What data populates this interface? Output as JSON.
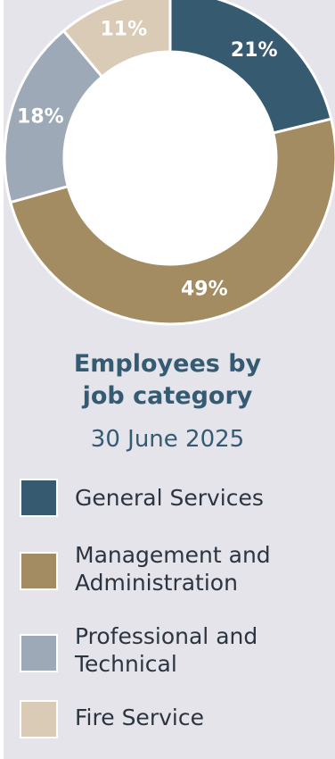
{
  "chart_data": {
    "type": "pie",
    "variant": "donut",
    "title_line1": "Employees by",
    "title_line2": "job category",
    "subtitle": "30 June 2025",
    "slices": [
      {
        "name": "General Services",
        "value": 21,
        "label": "21%",
        "color": "#365b70"
      },
      {
        "name": "Management and Administration",
        "value": 49,
        "label": "49%",
        "color": "#a48c62"
      },
      {
        "name": "Professional and Technical",
        "value": 18,
        "label": "18%",
        "color": "#9ea9b7"
      },
      {
        "name": "Fire Service",
        "value": 11,
        "label": "11%",
        "color": "#d9cbb6"
      }
    ]
  },
  "legend": {
    "items": [
      {
        "line1": "General Services",
        "line2": "",
        "color": "#365b70"
      },
      {
        "line1": "Management and",
        "line2": "Administration",
        "color": "#a48c62"
      },
      {
        "line1": "Professional and",
        "line2": "Technical",
        "color": "#9ea9b7"
      },
      {
        "line1": "Fire Service",
        "line2": "",
        "color": "#d9cbb6"
      }
    ]
  }
}
